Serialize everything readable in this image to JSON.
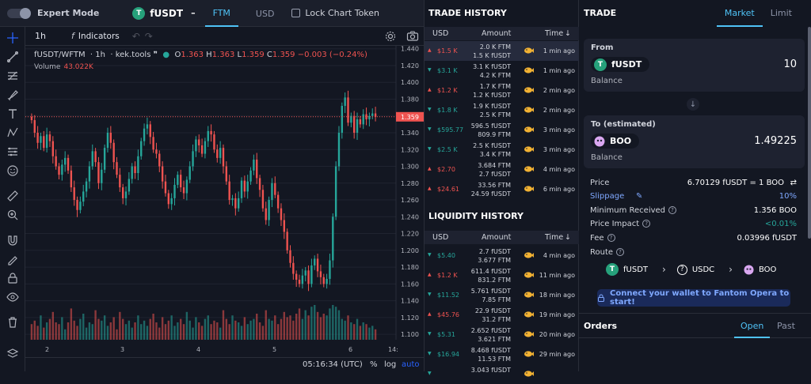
{
  "topbar": {
    "mode_label": "Expert Mode",
    "base_token": "fUSDT",
    "base_token_symbol": "T",
    "separator": "–",
    "quote_tabs": [
      "FTM",
      "USD"
    ],
    "active_quote": "FTM",
    "lock_label": "Lock Chart Token"
  },
  "chart_toolbar": {
    "interval": "1h",
    "fx": "f",
    "indicators_label": "Indicators",
    "undo_icon": "↶",
    "redo_icon": "↷"
  },
  "chart_legend": {
    "symbol": "fUSDT/WFTM",
    "interval": "1h",
    "source": "kek.tools",
    "source_mark": "❞",
    "o_label": "O",
    "o": "1.363",
    "h_label": "H",
    "h": "1.363",
    "l_label": "L",
    "l": "1.359",
    "c_label": "C",
    "c": "1.359",
    "change": "−0.003 (−0.24%)",
    "volume_label": "Volume",
    "volume": "43.022K"
  },
  "chart_bottom": {
    "time": "05:16:34 (UTC)",
    "percent": "%",
    "log": "log",
    "auto": "auto"
  },
  "chart_data": {
    "type": "candlestick",
    "y_ticks": [
      "1.440",
      "1.420",
      "1.400",
      "1.380",
      "1.360",
      "1.340",
      "1.320",
      "1.300",
      "1.280",
      "1.260",
      "1.240",
      "1.220",
      "1.200",
      "1.180",
      "1.160",
      "1.140",
      "1.120",
      "1.100"
    ],
    "y_min": 1.0935,
    "y_max": 1.4435,
    "x_ticks": [
      "2",
      "3",
      "4",
      "5",
      "6",
      "14:"
    ],
    "current_price": "1.359",
    "colors": {
      "up": "#26a69a",
      "down": "#ef5350",
      "price_line": "#ef5350"
    },
    "closes": [
      1.355,
      1.34,
      1.328,
      1.336,
      1.322,
      1.338,
      1.33,
      1.312,
      1.3,
      1.29,
      1.302,
      1.31,
      1.295,
      1.275,
      1.26,
      1.248,
      1.258,
      1.27,
      1.282,
      1.3,
      1.318,
      1.305,
      1.28,
      1.296,
      1.322,
      1.34,
      1.328,
      1.305,
      1.29,
      1.275,
      1.262,
      1.27,
      1.285,
      1.3,
      1.292,
      1.312,
      1.33,
      1.345,
      1.35,
      1.335,
      1.32,
      1.315,
      1.3,
      1.282,
      1.268,
      1.255,
      1.262,
      1.278,
      1.29,
      1.275,
      1.268,
      1.284,
      1.3,
      1.318,
      1.332,
      1.325,
      1.315,
      1.33,
      1.342,
      1.338,
      1.32,
      1.31,
      1.322,
      1.3,
      1.282,
      1.26,
      1.262,
      1.25,
      1.262,
      1.283,
      1.27,
      1.282,
      1.295,
      1.308,
      1.286,
      1.272,
      1.25,
      1.236,
      1.26,
      1.28,
      1.266,
      1.25,
      1.236,
      1.222,
      1.2,
      1.185,
      1.172,
      1.165,
      1.16,
      1.17,
      1.176,
      1.16,
      1.182,
      1.19,
      1.175,
      1.168,
      1.16,
      1.166,
      1.188,
      1.24,
      1.3,
      1.34,
      1.372,
      1.382,
      1.352,
      1.36,
      1.34,
      1.356,
      1.35,
      1.362,
      1.356,
      1.36,
      1.363,
      1.359
    ],
    "volumes": [
      0.45,
      0.55,
      0.4,
      0.7,
      0.35,
      0.5,
      0.6,
      0.8,
      0.5,
      0.45,
      0.65,
      0.3,
      0.5,
      0.9,
      0.55,
      0.4,
      0.6,
      0.75,
      0.35,
      0.5,
      0.45,
      0.85,
      0.6,
      0.55,
      0.7,
      0.4,
      0.5,
      0.65,
      0.3,
      0.8,
      0.6,
      0.45,
      0.55,
      0.35,
      0.5,
      0.7,
      0.45,
      0.55,
      0.4,
      0.6,
      0.75,
      0.5,
      0.35,
      0.65,
      0.45,
      0.55,
      0.7,
      0.4,
      0.5,
      0.6,
      0.45,
      0.8,
      0.55,
      0.35,
      0.65,
      0.5,
      0.4,
      0.6,
      0.7,
      0.45,
      0.55,
      0.5,
      0.35,
      0.85,
      0.6,
      0.45,
      0.7,
      0.55,
      0.5,
      0.4,
      0.65,
      0.45,
      0.55,
      0.6,
      0.75,
      0.5,
      0.4,
      0.85,
      0.6,
      0.55,
      0.7,
      0.45,
      0.6,
      0.8,
      0.65,
      0.7,
      0.55,
      0.75,
      0.9,
      0.6,
      0.85,
      0.7,
      0.95,
      1.0,
      0.8,
      0.65,
      0.75,
      0.7,
      0.9,
      1.0,
      0.95,
      0.85,
      0.6,
      0.55,
      0.7,
      0.5,
      0.45,
      0.6,
      0.4,
      0.5,
      0.45,
      0.35,
      0.4,
      0.3
    ]
  },
  "trade_history": {
    "title": "TRADE HISTORY",
    "columns": {
      "usd": "USD",
      "amount": "Amount",
      "time": "Time"
    },
    "time_sort_icon": "↓",
    "rows": [
      {
        "dir": "sell",
        "usd": "$1.5 K",
        "a1": "2.0 K",
        "u1": "FTM",
        "a2": "1.5 K",
        "u2": "fUSDT",
        "ago": "1 min ago",
        "highlight": true
      },
      {
        "dir": "buy",
        "usd": "$3.1 K",
        "a1": "3.1 K",
        "u1": "fUSDT",
        "a2": "4.2 K",
        "u2": "FTM",
        "ago": "1 min ago",
        "highlight": false
      },
      {
        "dir": "sell",
        "usd": "$1.2 K",
        "a1": "1.7 K",
        "u1": "FTM",
        "a2": "1.2 K",
        "u2": "fUSDT",
        "ago": "2 min ago",
        "highlight": false
      },
      {
        "dir": "buy",
        "usd": "$1.8 K",
        "a1": "1.9 K",
        "u1": "fUSDT",
        "a2": "2.5 K",
        "u2": "FTM",
        "ago": "2 min ago",
        "highlight": false
      },
      {
        "dir": "buy",
        "usd": "$595.77",
        "a1": "596.5",
        "u1": "fUSDT",
        "a2": "809.9",
        "u2": "FTM",
        "ago": "3 min ago",
        "highlight": false
      },
      {
        "dir": "buy",
        "usd": "$2.5 K",
        "a1": "2.5 K",
        "u1": "fUSDT",
        "a2": "3.4 K",
        "u2": "FTM",
        "ago": "3 min ago",
        "highlight": false
      },
      {
        "dir": "sell",
        "usd": "$2.70",
        "a1": "3.684",
        "u1": "FTM",
        "a2": "2.7",
        "u2": "fUSDT",
        "ago": "4 min ago",
        "highlight": false
      },
      {
        "dir": "sell",
        "usd": "$24.61",
        "a1": "33.56",
        "u1": "FTM",
        "a2": "24.59",
        "u2": "fUSDT",
        "ago": "6 min ago",
        "highlight": false
      }
    ]
  },
  "liquidity_history": {
    "title": "LIQUIDITY HISTORY",
    "columns": {
      "usd": "USD",
      "amount": "Amount",
      "time": "Time"
    },
    "time_sort_icon": "↓",
    "rows": [
      {
        "dir": "buy",
        "usd": "$5.40",
        "a1": "2.7",
        "u1": "fUSDT",
        "a2": "3.677",
        "u2": "FTM",
        "ago": "4 min ago"
      },
      {
        "dir": "sell",
        "usd": "$1.2 K",
        "a1": "611.4",
        "u1": "fUSDT",
        "a2": "831.2",
        "u2": "FTM",
        "ago": "11 min ago"
      },
      {
        "dir": "buy",
        "usd": "$11.52",
        "a1": "5.761",
        "u1": "fUSDT",
        "a2": "7.85",
        "u2": "FTM",
        "ago": "18 min ago"
      },
      {
        "dir": "sell",
        "usd": "$45.76",
        "a1": "22.9",
        "u1": "fUSDT",
        "a2": "31.2",
        "u2": "FTM",
        "ago": "19 min ago"
      },
      {
        "dir": "buy",
        "usd": "$5.31",
        "a1": "2.652",
        "u1": "fUSDT",
        "a2": "3.621",
        "u2": "FTM",
        "ago": "20 min ago"
      },
      {
        "dir": "buy",
        "usd": "$16.94",
        "a1": "8.468",
        "u1": "fUSDT",
        "a2": "11.53",
        "u2": "FTM",
        "ago": "29 min ago"
      },
      {
        "dir": "buy",
        "usd": "",
        "a1": "3.043",
        "u1": "fUSDT",
        "a2": "",
        "u2": "",
        "ago": ""
      }
    ]
  },
  "trade": {
    "title": "TRADE",
    "tabs": [
      "Market",
      "Limit"
    ],
    "from_label": "From",
    "from_token": "fUSDT",
    "from_symbol": "T",
    "from_value": "10",
    "from_balance": "Balance",
    "to_label": "To (estimated)",
    "to_token": "BOO",
    "to_value": "1.49225",
    "to_balance": "Balance",
    "price_label": "Price",
    "price_value": "6.70129 fUSDT = 1 BOO",
    "slippage_label": "Slippage",
    "slippage_value": "10%",
    "min_received_label": "Minimum Received",
    "min_received_value": "1.356 BOO",
    "price_impact_label": "Price Impact",
    "price_impact_value": "<0.01%",
    "fee_label": "Fee",
    "fee_value": "0.03996 fUSDT",
    "route_label": "Route",
    "route": [
      "fUSDT",
      "USDC",
      "BOO"
    ],
    "q_mark": "?",
    "connect_label": "Connect your wallet to Fantom Opera to start!",
    "orders_title": "Orders",
    "orders_tabs": [
      "Open",
      "Past"
    ]
  }
}
